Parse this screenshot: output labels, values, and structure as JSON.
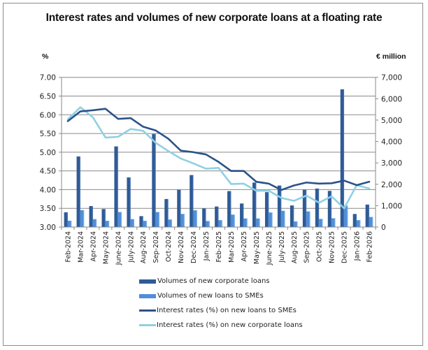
{
  "chart_data": {
    "type": "bar+line",
    "title": "Interest rates and volumes of new corporate loans at a floating rate",
    "y_left_label": "%",
    "y_right_label": "€ million",
    "y_left_range": [
      3.0,
      7.0
    ],
    "y_left_ticks": [
      "7.00",
      "6.50",
      "6.00",
      "5.50",
      "5.00",
      "4.50",
      "4.00",
      "3.50",
      "3.00"
    ],
    "y_right_range": [
      0,
      7000
    ],
    "y_right_ticks": [
      "7,000",
      "6,000",
      "5,000",
      "4,000",
      "3,000",
      "2,000",
      "1,000",
      "0"
    ],
    "grid": true,
    "legend_position": "bottom",
    "categories": [
      "Feb-2024",
      "Mar-2024",
      "Apr-2024",
      "May-2024",
      "June-2024",
      "July-2024",
      "Aug-2024",
      "Sep-2024",
      "Oct-2024",
      "Nov-2024",
      "Dec-2024",
      "Jan-2025",
      "Feb-2025",
      "Mar-2025",
      "Apr-2025",
      "May-2025",
      "June-2025",
      "July-2025",
      "Aug-2025",
      "Sep-2025",
      "Oct-2025",
      "Nov-2025",
      "Dec-2025",
      "Jan-2026",
      "Feb-2026"
    ],
    "series": [
      {
        "name": "Volumes of new corporate loans",
        "type": "bar",
        "axis": "right",
        "color": "#2e5b96",
        "values": [
          690,
          3300,
          980,
          840,
          3770,
          2320,
          510,
          4350,
          1310,
          1740,
          2430,
          870,
          960,
          1680,
          1100,
          2080,
          1630,
          1940,
          1010,
          1740,
          1800,
          1690,
          6440,
          610,
          1050
        ]
      },
      {
        "name": "Volumes of new loans to SMEs",
        "type": "bar",
        "axis": "right",
        "color": "#4f8fd9",
        "values": [
          295,
          790,
          370,
          290,
          700,
          370,
          290,
          700,
          350,
          610,
          780,
          280,
          320,
          580,
          400,
          400,
          680,
          760,
          260,
          730,
          380,
          410,
          1000,
          320,
          470
        ]
      },
      {
        "name": "Interest rates (%) on new loans to SMEs",
        "type": "line",
        "axis": "left",
        "color": "#2b5289",
        "values": [
          5.83,
          6.09,
          6.12,
          6.16,
          5.89,
          5.91,
          5.68,
          5.58,
          5.36,
          5.04,
          5.0,
          4.94,
          4.74,
          4.5,
          4.5,
          4.21,
          4.16,
          3.99,
          4.11,
          4.19,
          4.16,
          4.17,
          4.24,
          4.12,
          4.21
        ]
      },
      {
        "name": "Interest rates (%) on new corporate loans",
        "type": "line",
        "axis": "left",
        "color": "#8fd0e3",
        "values": [
          5.88,
          6.2,
          5.93,
          5.39,
          5.41,
          5.62,
          5.57,
          5.25,
          5.03,
          4.83,
          4.7,
          4.56,
          4.58,
          4.15,
          4.16,
          3.97,
          3.97,
          3.78,
          3.7,
          3.84,
          3.65,
          3.82,
          3.5,
          4.12,
          4.03
        ]
      }
    ]
  }
}
